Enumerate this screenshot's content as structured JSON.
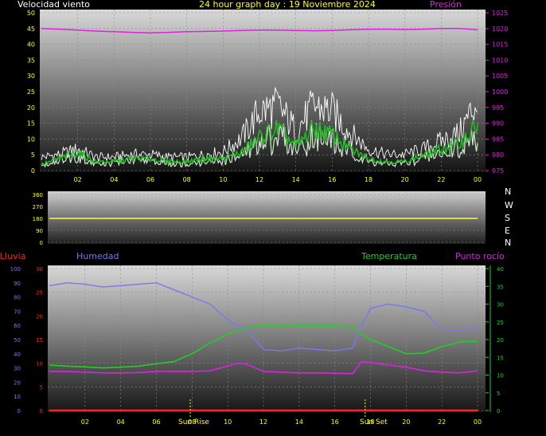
{
  "header": {
    "wind_label": "Velocidad viento",
    "title": "24 hour graph day : 19 Noviembre 2024",
    "pressure_label": "Presión"
  },
  "direction": {
    "letters": [
      "N",
      "W",
      "S",
      "E",
      "N"
    ]
  },
  "lower_header": {
    "rain_label": "Lluvia",
    "humidity_label": "Humedad",
    "temperature_label": "Temperatura",
    "dewpoint_label": "Punto rocío"
  },
  "events": {
    "sunrise_label": "Sun Rise",
    "sunset_label": "Sun Set"
  },
  "colors": {
    "background": "#000000",
    "wind_label": "#ffffff",
    "title": "#ffff00",
    "pressure": "#e020e0",
    "wind_gust": "#ffffff",
    "wind_avg": "#22c022",
    "wind_gust_fill": "#cfe8cf",
    "direction_line": "#ffff40",
    "humidity": "#7878f0",
    "temperature": "#20d020",
    "dewpoint": "#e020e0",
    "rain": "#ff2020",
    "axis_tick": "#ffff00"
  },
  "chart_data": [
    {
      "type": "line",
      "name": "wind_and_pressure",
      "x_ticks": [
        "02",
        "04",
        "06",
        "08",
        "10",
        "12",
        "14",
        "16",
        "18",
        "20",
        "22",
        "00"
      ],
      "x_range_hours": [
        0,
        24
      ],
      "y_left_ticks": [
        0,
        5,
        10,
        15,
        20,
        25,
        30,
        35,
        40,
        45,
        50
      ],
      "y_left_range": [
        0,
        50
      ],
      "y_right_ticks": [
        975,
        980,
        985,
        990,
        995,
        1000,
        1005,
        1010,
        1015,
        1020,
        1025
      ],
      "y_right_range": [
        975,
        1025
      ],
      "pressure": {
        "x": [
          0,
          1,
          2,
          3,
          4,
          5,
          6,
          7,
          8,
          9,
          10,
          11,
          12,
          13,
          14,
          15,
          16,
          17,
          18,
          19,
          20,
          21,
          22,
          23,
          24
        ],
        "y": [
          1020.0,
          1019.8,
          1019.5,
          1019.2,
          1019.0,
          1018.8,
          1018.6,
          1018.8,
          1019.0,
          1019.1,
          1019.2,
          1019.4,
          1019.5,
          1019.5,
          1019.4,
          1019.3,
          1019.4,
          1019.6,
          1019.8,
          1019.8,
          1019.7,
          1019.8,
          1020.0,
          1020.0,
          1019.6
        ]
      },
      "wind_gust": {
        "x": [
          0,
          1,
          2,
          3,
          4,
          5,
          6,
          7,
          8,
          9,
          10,
          11,
          12,
          13,
          14,
          15,
          16,
          17,
          18,
          19,
          20,
          21,
          22,
          23,
          24
        ],
        "y": [
          5,
          6,
          8,
          5,
          5,
          6,
          6,
          5,
          5,
          6,
          7,
          12,
          22,
          24,
          15,
          24,
          22,
          14,
          8,
          6,
          6,
          8,
          11,
          14,
          26
        ]
      },
      "wind_avg": {
        "x": [
          0,
          1,
          2,
          3,
          4,
          5,
          6,
          7,
          8,
          9,
          10,
          11,
          12,
          13,
          14,
          15,
          16,
          17,
          18,
          19,
          20,
          21,
          22,
          23,
          24
        ],
        "y": [
          2,
          4,
          6,
          3,
          3,
          4,
          4,
          3,
          3,
          4,
          4,
          6,
          11,
          14,
          8,
          14,
          12,
          7,
          4,
          3,
          3,
          5,
          7,
          9,
          15
        ]
      }
    },
    {
      "type": "line",
      "name": "wind_direction",
      "y_ticks": [
        0,
        90,
        180,
        270,
        360
      ],
      "y_range": [
        0,
        360
      ],
      "x": [
        0,
        24
      ],
      "y": [
        180,
        180
      ]
    },
    {
      "type": "line",
      "name": "humidity_temperature",
      "x_ticks": [
        "02",
        "04",
        "06",
        "08",
        "10",
        "12",
        "14",
        "16",
        "18",
        "20",
        "22",
        "00"
      ],
      "x_range_hours": [
        0,
        24
      ],
      "y_humidity_ticks": [
        0,
        10,
        20,
        30,
        40,
        50,
        60,
        70,
        80,
        90,
        100
      ],
      "y_humidity_range": [
        0,
        100
      ],
      "y_rain_ticks": [
        0,
        5,
        10,
        15,
        20,
        25,
        30
      ],
      "y_rain_range": [
        0,
        30
      ],
      "y_temp_ticks": [
        0,
        5,
        10,
        15,
        20,
        25,
        30,
        35,
        40
      ],
      "y_temp_range": [
        0,
        40
      ],
      "humidity": {
        "x": [
          0,
          1,
          2,
          3,
          4,
          5,
          6,
          7,
          8,
          9,
          10,
          10.5,
          11,
          12,
          13,
          14,
          15,
          16,
          17,
          17.5,
          18,
          19,
          20,
          21,
          22,
          23,
          24
        ],
        "y": [
          88,
          90,
          89,
          87,
          88,
          89,
          90,
          85,
          80,
          75,
          64,
          60,
          58,
          43,
          42,
          44,
          43,
          42,
          44,
          60,
          72,
          75,
          73,
          70,
          57,
          56,
          59
        ]
      },
      "temperature": {
        "x": [
          0,
          1,
          2,
          3,
          4,
          5,
          6,
          7,
          8,
          9,
          10,
          11,
          12,
          13,
          14,
          15,
          16,
          17,
          17.5,
          18,
          19,
          20,
          21,
          22,
          23,
          24
        ],
        "y": [
          12.8,
          12.5,
          12.3,
          12.0,
          12.2,
          12.5,
          13.2,
          13.8,
          16.0,
          19.0,
          21.5,
          23.2,
          24.0,
          23.8,
          24.0,
          24.0,
          24.0,
          23.5,
          21.5,
          20.0,
          18.0,
          16.0,
          16.2,
          18.0,
          19.3,
          19.5
        ]
      },
      "dewpoint": {
        "x": [
          0,
          1,
          2,
          3,
          4,
          5,
          6,
          7,
          8,
          9,
          10,
          10.5,
          11,
          12,
          13,
          14,
          15,
          16,
          17,
          17.5,
          18,
          19,
          20,
          21,
          22,
          23,
          24
        ],
        "y": [
          11.0,
          11.0,
          10.8,
          10.6,
          10.6,
          10.7,
          11.0,
          11.0,
          11.0,
          11.2,
          12.5,
          13.3,
          13.2,
          11.0,
          10.8,
          10.6,
          10.6,
          10.5,
          10.4,
          13.8,
          13.5,
          12.8,
          12.2,
          11.2,
          10.8,
          10.6,
          11.2
        ]
      },
      "rain": {
        "x": [
          0,
          24
        ],
        "y": [
          0,
          0
        ]
      },
      "sunrise_hour": 7.9,
      "sunset_hour": 17.7
    }
  ]
}
